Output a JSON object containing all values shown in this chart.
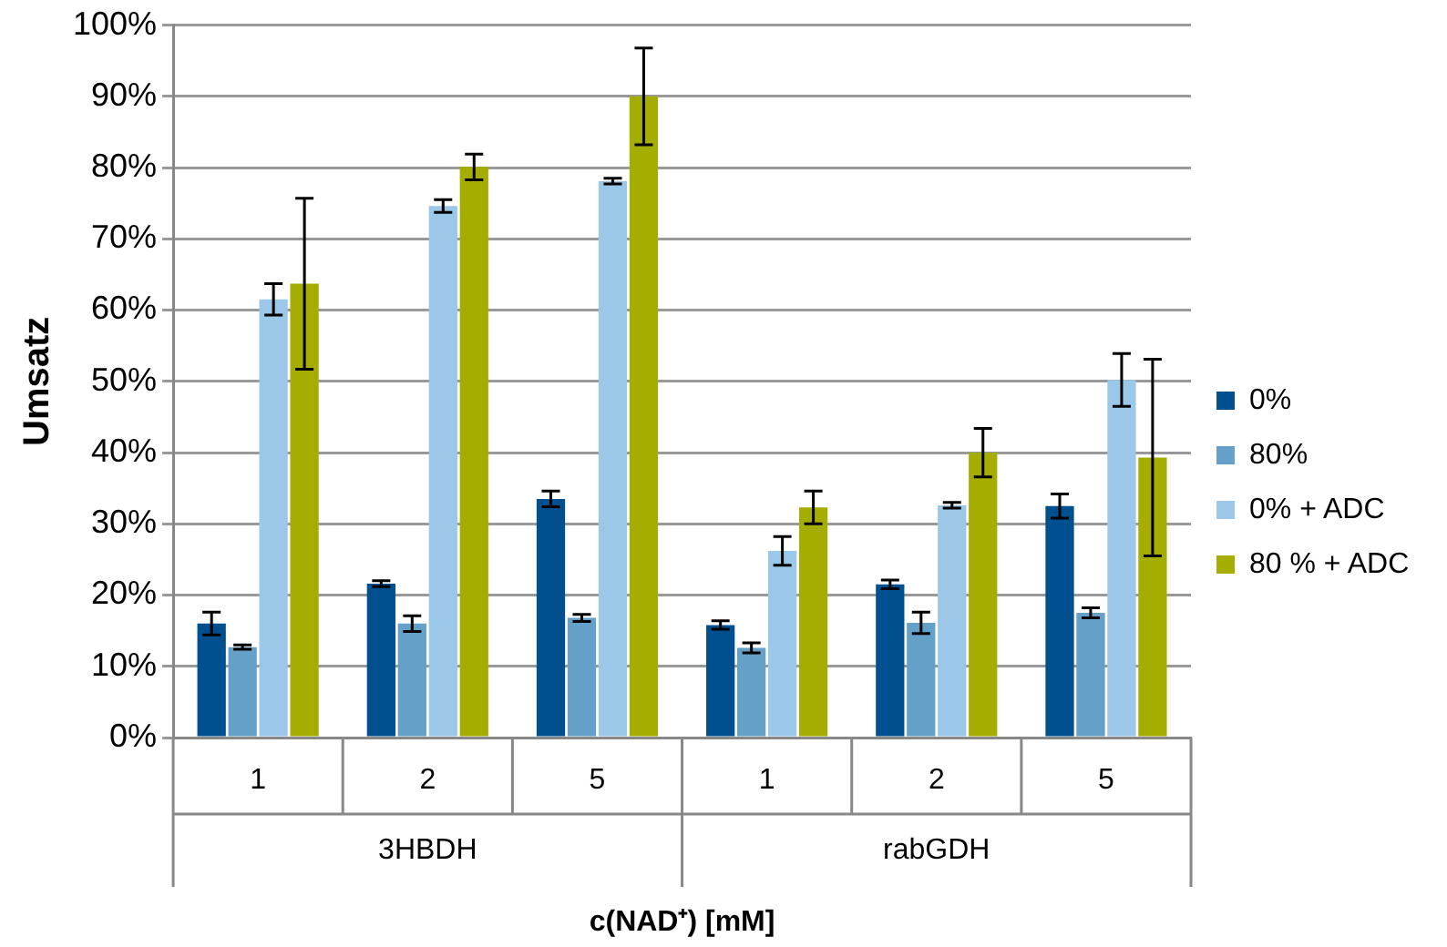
{
  "chart_data": {
    "type": "bar",
    "xlabel": "c(NAD⁺) [mM]",
    "ylabel": "Umsatz",
    "categories": [
      "1",
      "2",
      "5",
      "1",
      "2",
      "5"
    ],
    "annotations": [
      "3HBDH",
      "rabGDH"
    ],
    "series": [
      {
        "name": "0%",
        "color": "#00508f",
        "values": [
          16,
          21.6,
          33.5,
          15.8,
          21.5,
          32.5
        ],
        "errors": [
          1.6,
          0.4,
          1.1,
          0.6,
          0.6,
          1.7
        ]
      },
      {
        "name": "80%",
        "color": "#64a0c8",
        "values": [
          12.7,
          16,
          16.8,
          12.6,
          16.1,
          17.5
        ],
        "errors": [
          0.3,
          1.1,
          0.5,
          0.7,
          1.5,
          0.7
        ]
      },
      {
        "name": "0% + ADC",
        "color": "#9bc8e8",
        "values": [
          61.5,
          74.6,
          78.1,
          26.2,
          32.6,
          50.2
        ],
        "errors": [
          2.2,
          0.9,
          0.4,
          2,
          0.4,
          3.7
        ]
      },
      {
        "name": "80 % + ADC",
        "color": "#a5ad00",
        "values": [
          63.7,
          80.1,
          90,
          32.3,
          40,
          39.3
        ],
        "errors": [
          12,
          1.8,
          6.8,
          2.3,
          3.4,
          13.8
        ]
      }
    ],
    "ylim": [
      0,
      100
    ],
    "yticks": [
      {
        "value": 0,
        "label": "0%"
      },
      {
        "value": 10,
        "label": "10%"
      },
      {
        "value": 20,
        "label": "20%"
      },
      {
        "value": 30,
        "label": "30%"
      },
      {
        "value": 40,
        "label": "40%"
      },
      {
        "value": 50,
        "label": "50%"
      },
      {
        "value": 60,
        "label": "60%"
      },
      {
        "value": 70,
        "label": "70%"
      },
      {
        "value": 80,
        "label": "80%"
      },
      {
        "value": 90,
        "label": "90%"
      },
      {
        "value": 100,
        "label": "100%"
      }
    ],
    "grid": "y",
    "legend": "right"
  }
}
